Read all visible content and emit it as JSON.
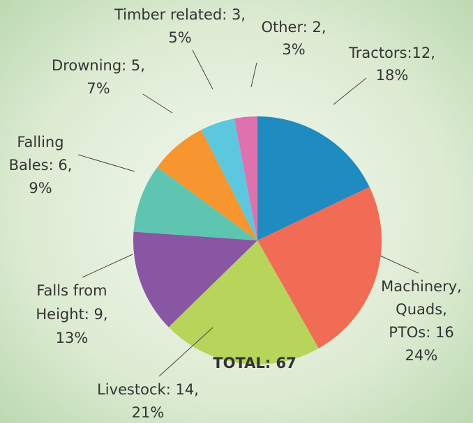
{
  "chart_data": {
    "type": "pie",
    "values": [
      12,
      16,
      14,
      9,
      6,
      5,
      3,
      2
    ],
    "value_labels": [
      [
        "Tractors:12,",
        "18%"
      ],
      [
        "Machinery,",
        "Quads,",
        "PTOs: 16",
        "24%"
      ],
      [
        "Livestock: 14,",
        "21%"
      ],
      [
        "Falls from",
        "Height: 9,",
        "13%"
      ],
      [
        "Falling",
        "Bales: 6,",
        "9%"
      ],
      [
        "Drowning: 5,",
        "7%"
      ],
      [
        "Timber related: 3,",
        "5%"
      ],
      [
        "Other: 2,",
        "3%"
      ]
    ],
    "colors": [
      "#1f8bc0",
      "#f26b55",
      "#b6d55a",
      "#8856a3",
      "#5ec5b1",
      "#f7962f",
      "#5bc8df",
      "#df72ae"
    ],
    "total_label": "TOTAL: 67"
  }
}
